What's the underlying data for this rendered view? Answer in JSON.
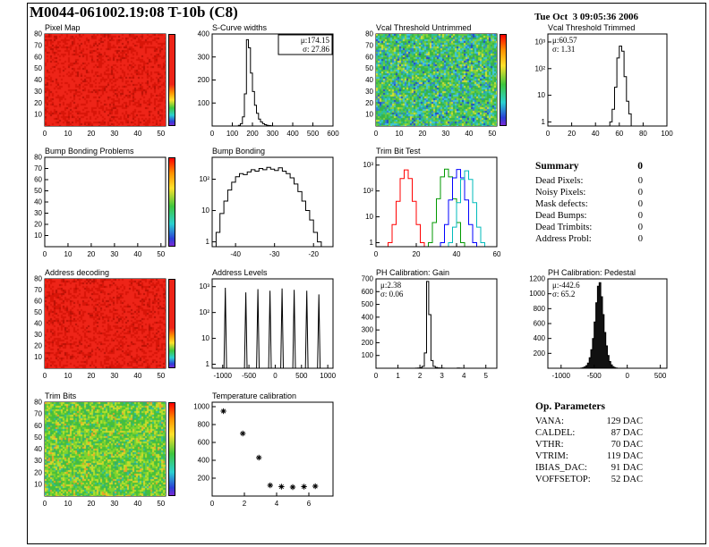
{
  "header": {
    "title": "M0044-061002.19:08 T-10b (C8)",
    "date": "Tue Oct  3 09:05:36 2006"
  },
  "summary": {
    "title": "Summary",
    "total": "0",
    "rows": [
      {
        "label": "Dead Pixels:",
        "value": "0"
      },
      {
        "label": "Noisy Pixels:",
        "value": "0"
      },
      {
        "label": "Mask defects:",
        "value": "0"
      },
      {
        "label": "Dead Bumps:",
        "value": "0"
      },
      {
        "label": "Dead Trimbits:",
        "value": "0"
      },
      {
        "label": "Address Probl:",
        "value": "0"
      }
    ]
  },
  "op_parameters": {
    "title": "Op. Parameters",
    "rows": [
      {
        "label": "VANA:",
        "value": "129 DAC"
      },
      {
        "label": "CALDEL:",
        "value": "87 DAC"
      },
      {
        "label": "VTHR:",
        "value": "70 DAC"
      },
      {
        "label": "VTRIM:",
        "value": "119 DAC"
      },
      {
        "label": "IBIAS_DAC:",
        "value": "91 DAC"
      },
      {
        "label": "VOFFSETOP:",
        "value": "52 DAC"
      }
    ]
  },
  "chart_data": [
    {
      "id": "pixel-map",
      "type": "heatmap",
      "title": "Pixel Map",
      "x_range": [
        0,
        52
      ],
      "y_range": [
        0,
        80
      ],
      "x_ticks": [
        0,
        10,
        20,
        30,
        40,
        50
      ],
      "y_ticks": [
        10,
        20,
        30,
        40,
        50,
        60,
        70,
        80
      ],
      "palette": [
        [
          "#ee2418",
          0.62
        ],
        [
          "#d81508",
          0.3
        ],
        [
          "#b81005",
          0.08
        ]
      ],
      "colorbar": [
        [
          "#ee2418",
          0
        ],
        [
          "#ee2418",
          55
        ],
        [
          "#ff9100",
          64
        ],
        [
          "#ffe12b",
          72
        ],
        [
          "#3ec63e",
          81
        ],
        [
          "#2bd0d0",
          89
        ],
        [
          "#2b3fd6",
          96
        ],
        [
          "#7a2bd6",
          100
        ]
      ]
    },
    {
      "id": "s-curve-widths",
      "type": "hist",
      "title": "S-Curve widths",
      "color": "#000000",
      "x_range": [
        0,
        600
      ],
      "x_ticks": [
        0,
        100,
        200,
        300,
        400,
        500,
        600
      ],
      "y_scale": "lin",
      "y_range": [
        0,
        400
      ],
      "y_ticks": [
        100,
        200,
        300,
        400
      ],
      "bins": {
        "start": 130,
        "step": 10,
        "values": [
          3,
          10,
          40,
          140,
          375,
          340,
          230,
          150,
          90,
          55,
          30,
          18,
          10,
          6,
          3,
          2,
          1
        ]
      },
      "stats": {
        "mu": "μ:174.15",
        "sigma": "σ: 27.86",
        "pos": "tr",
        "border": true
      }
    },
    {
      "id": "vcal-threshold-untrimmed",
      "type": "heatmap",
      "title": "Vcal Threshold Untrimmed",
      "x_range": [
        0,
        52
      ],
      "y_range": [
        0,
        80
      ],
      "x_ticks": [
        0,
        10,
        20,
        30,
        40,
        50
      ],
      "y_ticks": [
        10,
        20,
        30,
        40,
        50,
        60,
        70,
        80
      ],
      "palette": [
        [
          "#35b44a",
          0.24
        ],
        [
          "#5ec943",
          0.18
        ],
        [
          "#2bbf9a",
          0.16
        ],
        [
          "#3ec6e0",
          0.14
        ],
        [
          "#8fd435",
          0.1
        ],
        [
          "#2f7fd4",
          0.08
        ],
        [
          "#d7e034",
          0.06
        ],
        [
          "#1f49c9",
          0.04
        ]
      ],
      "colorbar": [
        [
          "#ff0000",
          0
        ],
        [
          "#ff9100",
          17
        ],
        [
          "#ffe12b",
          34
        ],
        [
          "#3ec63e",
          55
        ],
        [
          "#2bd0d0",
          75
        ],
        [
          "#2b3fd6",
          92
        ],
        [
          "#7a2bd6",
          100
        ]
      ]
    },
    {
      "id": "vcal-threshold-trimmed",
      "type": "hist",
      "title": "Vcal Threshold Trimmed",
      "color": "#000000",
      "x_range": [
        0,
        100
      ],
      "x_ticks": [
        0,
        20,
        40,
        60,
        80,
        100
      ],
      "y_scale": "log",
      "y_range": [
        0.7,
        2000
      ],
      "y_ticks": [
        1,
        10,
        100,
        1000
      ],
      "bins": {
        "start": 52,
        "step": 2,
        "values": [
          1,
          3,
          20,
          250,
          700,
          450,
          50,
          6,
          2
        ]
      },
      "stats": {
        "mu": "μ:60.57",
        "sigma": "σ: 1.31",
        "pos": "tl",
        "border": false
      }
    },
    {
      "id": "bump-bonding-problems",
      "type": "heatmap",
      "title": "Bump Bonding Problems",
      "x_range": [
        0,
        52
      ],
      "y_range": [
        0,
        80
      ],
      "x_ticks": [
        0,
        10,
        20,
        30,
        40,
        50
      ],
      "y_ticks": [
        10,
        20,
        30,
        40,
        50,
        60,
        70,
        80
      ],
      "palette": null,
      "colorbar": [
        [
          "#ff0000",
          0
        ],
        [
          "#ff9100",
          17
        ],
        [
          "#ffe12b",
          34
        ],
        [
          "#3ec63e",
          55
        ],
        [
          "#2bd0d0",
          75
        ],
        [
          "#2b3fd6",
          92
        ],
        [
          "#7a2bd6",
          100
        ]
      ]
    },
    {
      "id": "bump-bonding",
      "type": "hist",
      "title": "Bump Bonding",
      "color": "#000000",
      "x_range": [
        -46,
        -15
      ],
      "x_ticks": [
        -40,
        -30,
        -20
      ],
      "y_scale": "log",
      "y_range": [
        0.7,
        500
      ],
      "y_ticks": [
        1,
        10,
        100
      ],
      "bins": {
        "start": -45,
        "step": 1,
        "values": [
          2,
          8,
          20,
          45,
          80,
          120,
          150,
          140,
          170,
          200,
          180,
          220,
          200,
          240,
          210,
          190,
          230,
          180,
          150,
          110,
          70,
          40,
          20,
          10,
          5,
          2,
          1
        ]
      }
    },
    {
      "id": "trim-bit-test",
      "type": "multihist",
      "title": "Trim Bit Test",
      "x_range": [
        0,
        60
      ],
      "x_ticks": [
        0,
        20,
        40,
        60
      ],
      "y_scale": "log",
      "y_range": [
        0.7,
        2000
      ],
      "y_ticks": [
        1,
        10,
        100,
        1000
      ],
      "series": [
        {
          "name": "trim-test-red",
          "color": "#ff0000",
          "bins": {
            "start": 6,
            "step": 2,
            "values": [
              1,
              5,
              40,
              300,
              650,
              300,
              40,
              5,
              1
            ]
          }
        },
        {
          "name": "trim-test-green",
          "color": "#009900",
          "bins": {
            "start": 26,
            "step": 2,
            "values": [
              1,
              6,
              50,
              350,
              700,
              350,
              50,
              6,
              1
            ]
          }
        },
        {
          "name": "trim-test-blue",
          "color": "#0000ff",
          "bins": {
            "start": 32,
            "step": 2,
            "values": [
              1,
              5,
              45,
              320,
              680,
              320,
              45,
              5,
              1
            ]
          }
        },
        {
          "name": "trim-test-cyan",
          "color": "#00bbbb",
          "bins": {
            "start": 36,
            "step": 2,
            "values": [
              1,
              4,
              35,
              280,
              600,
              280,
              35,
              4,
              1
            ]
          }
        }
      ]
    },
    {
      "id": "address-decoding",
      "type": "heatmap",
      "title": "Address decoding",
      "x_range": [
        0,
        52
      ],
      "y_range": [
        0,
        80
      ],
      "x_ticks": [
        0,
        10,
        20,
        30,
        40,
        50
      ],
      "y_ticks": [
        10,
        20,
        30,
        40,
        50,
        60,
        70,
        80
      ],
      "palette": [
        [
          "#ee2418",
          0.62
        ],
        [
          "#d81508",
          0.3
        ],
        [
          "#b81005",
          0.08
        ]
      ],
      "colorbar": [
        [
          "#ee2418",
          0
        ],
        [
          "#ee2418",
          55
        ],
        [
          "#ff9100",
          64
        ],
        [
          "#ffe12b",
          72
        ],
        [
          "#3ec63e",
          81
        ],
        [
          "#2bd0d0",
          89
        ],
        [
          "#2b3fd6",
          96
        ],
        [
          "#7a2bd6",
          100
        ]
      ]
    },
    {
      "id": "address-levels",
      "type": "spikes",
      "title": "Address Levels",
      "color": "#000000",
      "x_range": [
        -1200,
        1100
      ],
      "x_ticks": [
        -1000,
        -500,
        0,
        500,
        1000
      ],
      "y_scale": "log",
      "y_range": [
        0.7,
        2000
      ],
      "y_ticks": [
        1,
        10,
        100,
        1000
      ],
      "spike_halfwidth": 25,
      "spikes": [
        [
          -950,
          900
        ],
        [
          -560,
          600
        ],
        [
          -330,
          800
        ],
        [
          -100,
          700
        ],
        [
          130,
          850
        ],
        [
          360,
          750
        ],
        [
          600,
          700
        ],
        [
          830,
          500
        ]
      ]
    },
    {
      "id": "ph-calibration-gain",
      "type": "hist",
      "title": "PH Calibration: Gain",
      "color": "#000000",
      "x_range": [
        0,
        5.5
      ],
      "x_ticks": [
        0,
        1,
        2,
        3,
        4,
        5
      ],
      "y_scale": "lin",
      "y_range": [
        0,
        700
      ],
      "y_ticks": [
        100,
        200,
        300,
        400,
        500,
        600,
        700
      ],
      "bins": {
        "start": 1.8,
        "step": 0.1,
        "values": [
          1,
          2,
          5,
          15,
          120,
          680,
          420,
          60,
          15,
          6,
          3,
          2,
          1,
          0,
          0,
          0,
          0,
          0,
          0,
          2,
          1
        ]
      },
      "stats": {
        "mu": "μ:2.38",
        "sigma": "σ: 0.06",
        "pos": "tl",
        "border": false
      }
    },
    {
      "id": "ph-calibration-pedestal",
      "type": "hist",
      "title": "PH Calibration: Pedestal",
      "color": "#000000",
      "fill": "#111111",
      "x_range": [
        -1200,
        600
      ],
      "x_ticks": [
        -1000,
        -500,
        0,
        500
      ],
      "y_scale": "lin",
      "y_range": [
        0,
        1200
      ],
      "y_ticks": [
        200,
        400,
        600,
        800,
        1000,
        1200
      ],
      "bins": {
        "start": -700,
        "step": 25,
        "values": [
          3,
          8,
          18,
          35,
          70,
          140,
          250,
          400,
          620,
          880,
          1100,
          1150,
          960,
          720,
          480,
          300,
          170,
          90,
          45,
          20,
          8,
          3
        ]
      },
      "stats": {
        "mu": "μ:-442.6",
        "sigma": "σ: 65.2",
        "pos": "tl",
        "border": false
      }
    },
    {
      "id": "trim-bits",
      "type": "heatmap",
      "title": "Trim Bits",
      "x_range": [
        0,
        52
      ],
      "y_range": [
        0,
        80
      ],
      "x_ticks": [
        0,
        10,
        20,
        30,
        40,
        50
      ],
      "y_ticks": [
        10,
        20,
        30,
        40,
        50,
        60,
        70,
        80
      ],
      "palette": [
        [
          "#46c03a",
          0.3
        ],
        [
          "#7ed32f",
          0.22
        ],
        [
          "#b7e02c",
          0.16
        ],
        [
          "#35b06a",
          0.12
        ],
        [
          "#e0d529",
          0.1
        ],
        [
          "#2fbfa0",
          0.06
        ],
        [
          "#f0a028",
          0.04
        ]
      ],
      "colorbar": [
        [
          "#ff0000",
          0
        ],
        [
          "#ff9100",
          17
        ],
        [
          "#ffe12b",
          34
        ],
        [
          "#3ec63e",
          55
        ],
        [
          "#2bd0d0",
          75
        ],
        [
          "#2b3fd6",
          92
        ],
        [
          "#7a2bd6",
          100
        ]
      ]
    },
    {
      "id": "temperature-calibration",
      "type": "scatter",
      "title": "Temperature calibration",
      "color": "#000000",
      "x_range": [
        0,
        7.5
      ],
      "x_ticks": [
        0,
        2,
        4,
        6
      ],
      "y_scale": "lin",
      "y_range": [
        0,
        1050
      ],
      "y_ticks": [
        200,
        400,
        600,
        800,
        1000
      ],
      "points": [
        [
          0.7,
          950
        ],
        [
          1.9,
          700
        ],
        [
          2.9,
          430
        ],
        [
          3.6,
          120
        ],
        [
          4.3,
          105
        ],
        [
          5.0,
          100
        ],
        [
          5.7,
          105
        ],
        [
          6.4,
          110
        ]
      ]
    }
  ]
}
